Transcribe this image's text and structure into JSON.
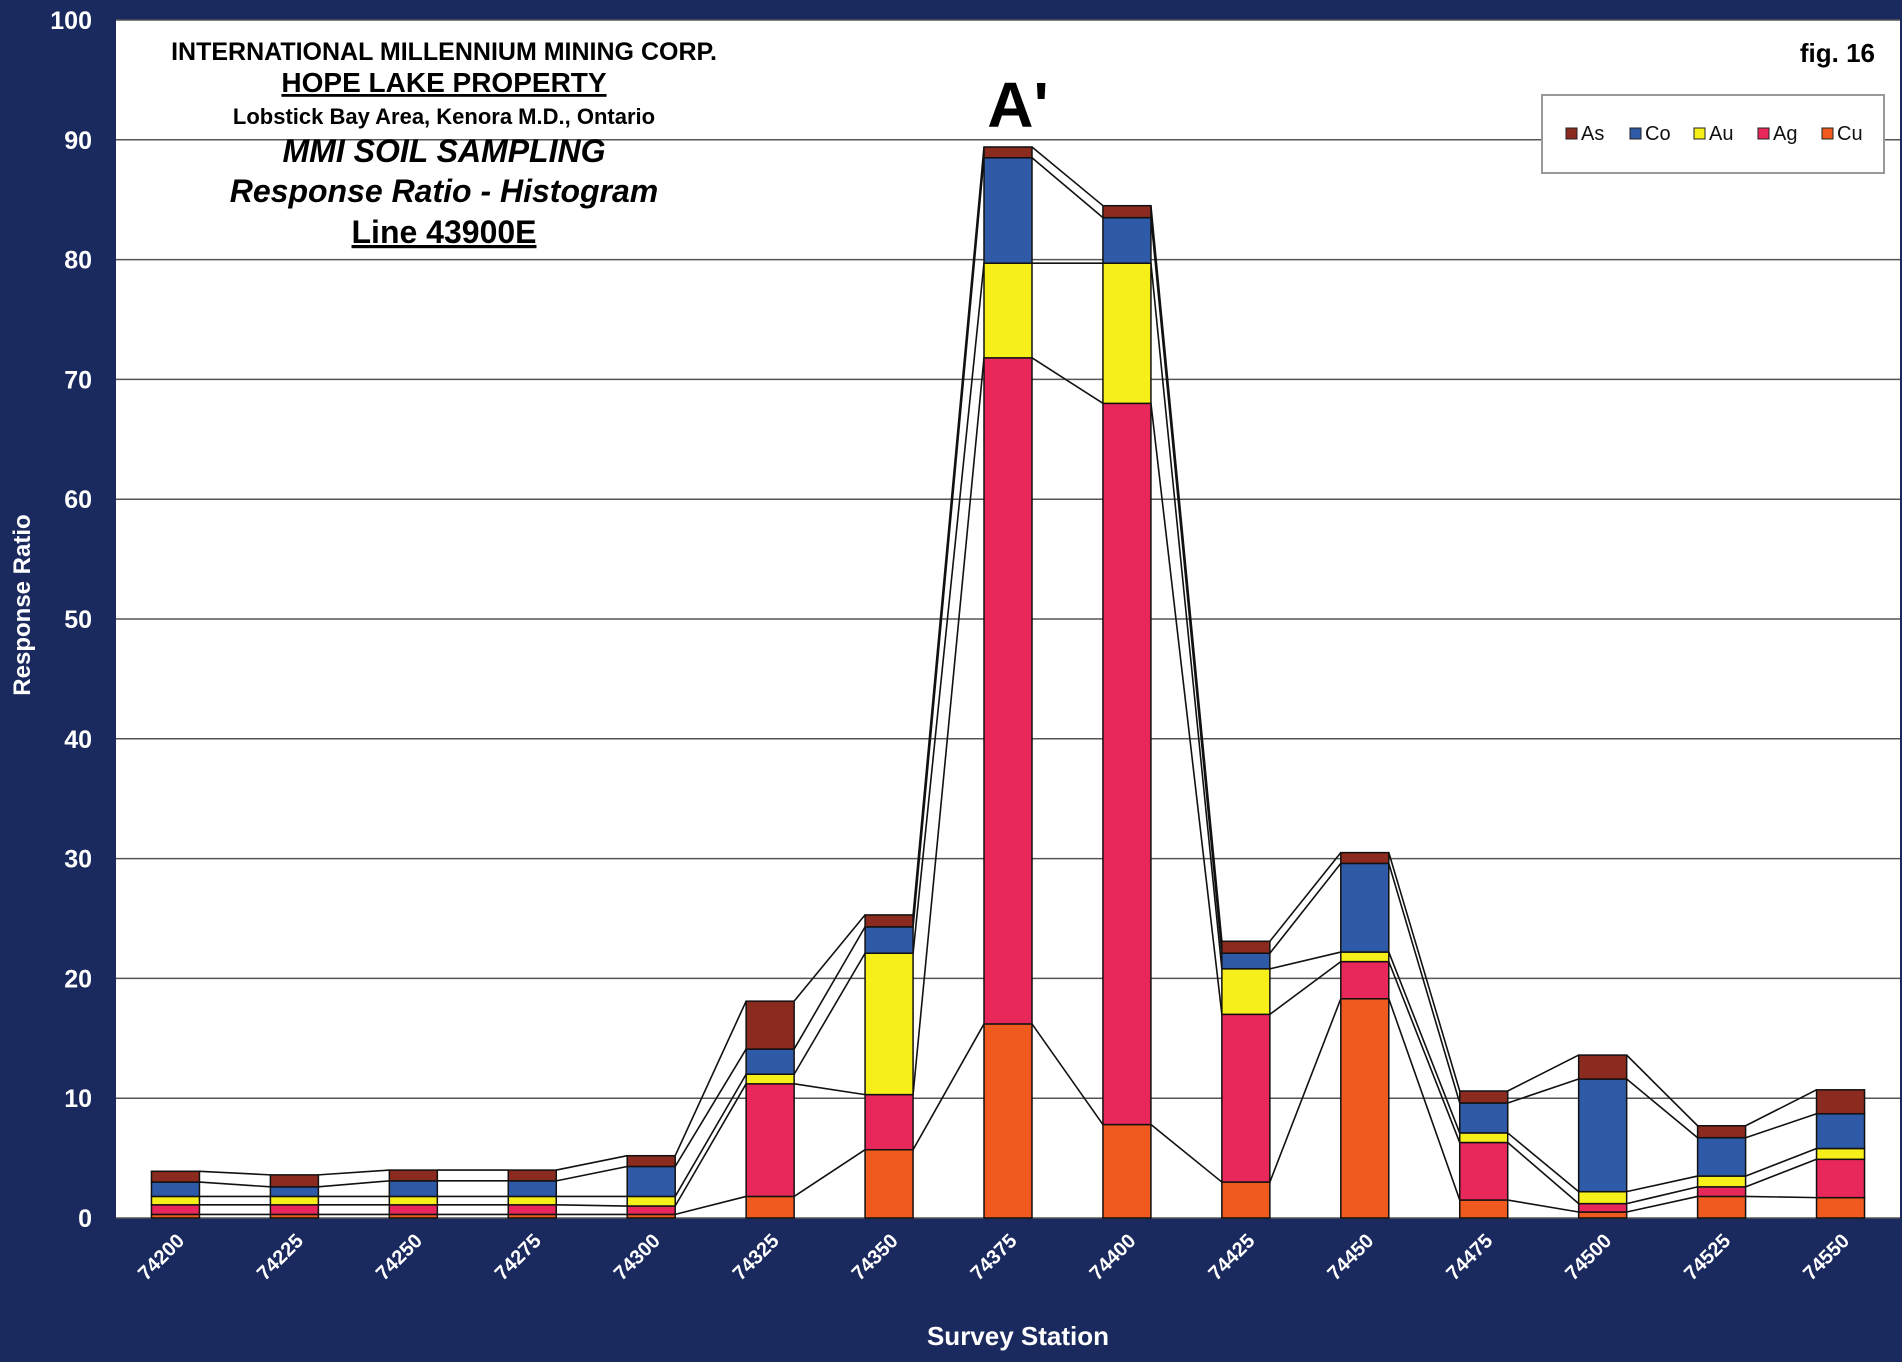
{
  "chart_data": {
    "type": "bar",
    "stacked": true,
    "title_lines": [
      "INTERNATIONAL MILLENNIUM MINING CORP.",
      "HOPE LAKE PROPERTY",
      "Lobstick Bay Area, Kenora M.D., Ontario",
      "MMI SOIL SAMPLING",
      "Response Ratio - Histogram",
      "Line 43900E"
    ],
    "figure_label": "fig. 16",
    "anomaly_label": "A'",
    "xlabel": "Survey Station",
    "ylabel": "Response Ratio",
    "ylim": [
      0,
      100
    ],
    "yticks": [
      0,
      10,
      20,
      30,
      40,
      50,
      60,
      70,
      80,
      90,
      100
    ],
    "grid": true,
    "legend_position": "top-right",
    "categories": [
      "74200",
      "74225",
      "74250",
      "74275",
      "74300",
      "74325",
      "74350",
      "74375",
      "74400",
      "74425",
      "74450",
      "74475",
      "74500",
      "74525",
      "74550"
    ],
    "series": [
      {
        "name": "Cu",
        "color": "#f05a1e",
        "values": [
          0.3,
          0.3,
          0.3,
          0.3,
          0.3,
          1.8,
          5.7,
          16.2,
          7.8,
          3.0,
          18.3,
          1.5,
          0.5,
          1.8,
          1.7
        ]
      },
      {
        "name": "Ag",
        "color": "#e8285a",
        "values": [
          0.8,
          0.8,
          0.8,
          0.8,
          0.7,
          9.4,
          4.6,
          55.6,
          60.2,
          14.0,
          3.1,
          4.8,
          0.7,
          0.8,
          3.2
        ]
      },
      {
        "name": "Au",
        "color": "#f7ef1a",
        "values": [
          0.7,
          0.7,
          0.7,
          0.7,
          0.8,
          0.8,
          11.8,
          7.9,
          11.7,
          3.8,
          0.8,
          0.8,
          1.0,
          0.9,
          0.9
        ]
      },
      {
        "name": "Co",
        "color": "#2f5aa8",
        "values": [
          1.2,
          0.8,
          1.3,
          1.3,
          2.5,
          2.1,
          2.2,
          8.8,
          3.8,
          1.3,
          7.4,
          2.5,
          9.4,
          3.2,
          2.9
        ]
      },
      {
        "name": "As",
        "color": "#8b2a1e",
        "values": [
          0.9,
          1.0,
          0.9,
          0.9,
          0.9,
          4.0,
          1.0,
          0.9,
          1.0,
          1.0,
          0.9,
          1.0,
          2.0,
          1.0,
          2.0
        ]
      }
    ],
    "legend_order": [
      "As",
      "Co",
      "Au",
      "Ag",
      "Cu"
    ]
  }
}
